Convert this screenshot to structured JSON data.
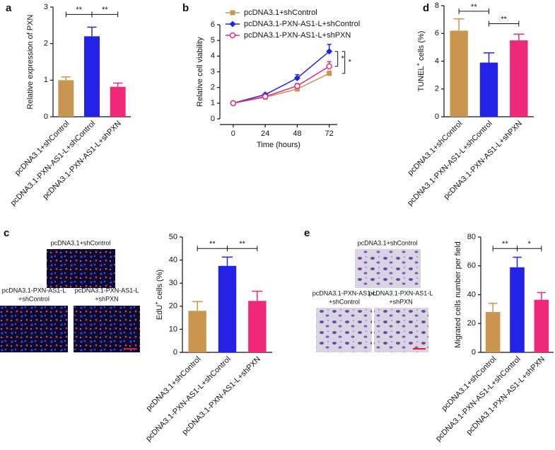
{
  "chart_data": [
    {
      "type": "bar",
      "panel": "a",
      "ylabel": "Relative expression of PXN",
      "categories": [
        "pcDNA3.1+shControl",
        "pcDNA3.1-PXN-AS1-L+shControl",
        "pcDNA3.1-PXN-AS1-L+shPXN"
      ],
      "values": [
        1.0,
        2.2,
        0.82
      ],
      "errors": [
        0.09,
        0.25,
        0.1
      ],
      "colors": [
        "#c8964f",
        "#2323e8",
        "#f0287a"
      ],
      "ylim": [
        0,
        3
      ],
      "yticks": [
        0,
        1,
        2,
        3
      ],
      "significance": [
        {
          "label": "**",
          "between": [
            0,
            1
          ],
          "level": 2.8
        },
        {
          "label": "**",
          "between": [
            1,
            2
          ],
          "level": 2.8
        }
      ]
    },
    {
      "type": "line",
      "panel": "b",
      "xlabel": "Time (hours)",
      "ylabel": "Relative cell viability",
      "x": [
        0,
        24,
        48,
        72
      ],
      "xlim": [
        -10,
        78
      ],
      "xticks": [
        0,
        24,
        48,
        72
      ],
      "ylim": [
        0,
        6
      ],
      "yticks": [
        0,
        1,
        2,
        3,
        4,
        5,
        6
      ],
      "legend": "top-left",
      "series": [
        {
          "name": "pcDNA3.1+shControl",
          "color": "#c8964f",
          "marker": "square",
          "values": [
            1,
            1.38,
            1.9,
            2.9
          ],
          "errors": [
            0.03,
            0.06,
            0.12,
            0.15
          ]
        },
        {
          "name": "pcDNA3.1-PXN-AS1-L+shControl",
          "color": "#2323e8",
          "marker": "diamond",
          "values": [
            1,
            1.55,
            2.6,
            4.3
          ],
          "errors": [
            0.03,
            0.07,
            0.22,
            0.45
          ]
        },
        {
          "name": "pcDNA3.1-PXN-AS1-L+shPXN",
          "color": "#f0287a",
          "marker": "open-circle",
          "values": [
            1,
            1.42,
            2.1,
            3.35
          ],
          "errors": [
            0.03,
            0.06,
            0.15,
            0.3
          ]
        }
      ],
      "significance": [
        {
          "label": "*",
          "between": [
            1,
            2
          ]
        },
        {
          "label": "*",
          "between": [
            1,
            0
          ]
        }
      ]
    },
    {
      "type": "bar",
      "panel": "c",
      "ylabel": [
        "EdU",
        "+",
        " cells (%)"
      ],
      "categories": [
        "pcDNA3.1+shControl",
        "pcDNA3.1-PXN-AS1-L+shControl",
        "pcDNA3.1-PXN-AS1-L+shPXN"
      ],
      "values": [
        18,
        37.5,
        22.3
      ],
      "errors": [
        4,
        3.8,
        4.2
      ],
      "colors": [
        "#c8964f",
        "#2323e8",
        "#f0287a"
      ],
      "ylim": [
        0,
        50
      ],
      "yticks": [
        0,
        10,
        20,
        30,
        40,
        50
      ],
      "significance": [
        {
          "label": "**",
          "between": [
            0,
            1
          ],
          "level": 45
        },
        {
          "label": "**",
          "between": [
            1,
            2
          ],
          "level": 45
        }
      ]
    },
    {
      "type": "bar",
      "panel": "d",
      "ylabel": [
        "TUNEL",
        "+",
        " cells (%)"
      ],
      "categories": [
        "pcDNA3.1+shControl",
        "pcDNA3.1-PXN-AS1-L+shControl",
        "pcDNA3.1-PXN-AS1-L+shPXN"
      ],
      "values": [
        6.2,
        3.9,
        5.5
      ],
      "errors": [
        0.85,
        0.7,
        0.45
      ],
      "colors": [
        "#c8964f",
        "#2323e8",
        "#f0287a"
      ],
      "ylim": [
        0,
        8
      ],
      "yticks": [
        0,
        2,
        4,
        6,
        8
      ],
      "significance": [
        {
          "label": "**",
          "between": [
            0,
            1
          ],
          "level": 7.6
        },
        {
          "label": "**",
          "between": [
            1,
            2
          ],
          "level": 6.7
        }
      ]
    },
    {
      "type": "bar",
      "panel": "e",
      "ylabel": "Migrated cells number per field",
      "categories": [
        "pcDNA3.1+shControl",
        "pcDNA3.1-PXN-AS1-L+shControl",
        "pcDNA3.1-PXN-AS1-L+shPXN"
      ],
      "values": [
        28,
        59,
        36.5
      ],
      "errors": [
        6,
        7,
        5
      ],
      "colors": [
        "#c8964f",
        "#2323e8",
        "#f0287a"
      ],
      "ylim": [
        0,
        80
      ],
      "yticks": [
        0,
        20,
        40,
        60,
        80
      ],
      "significance": [
        {
          "label": "**",
          "between": [
            0,
            1
          ],
          "level": 72
        },
        {
          "label": "*",
          "between": [
            1,
            2
          ],
          "level": 72
        }
      ]
    }
  ],
  "micrographs": {
    "c": [
      {
        "caption": [
          "pcDNA3.1+shControl"
        ]
      },
      {
        "caption": [
          "pcDNA3.1-PXN-AS1-L",
          "+shControl"
        ]
      },
      {
        "caption": [
          "pcDNA3.1-PXN-AS1-L",
          "+shPXN"
        ]
      }
    ],
    "e": [
      {
        "caption": [
          "pcDNA3.1+shControl"
        ]
      },
      {
        "caption": [
          "pcDNA3.1-PXN-AS1-L",
          "+shControl"
        ]
      },
      {
        "caption": [
          "pcDNA3.1-PXN-AS1-L",
          "+shPXN"
        ]
      }
    ]
  }
}
